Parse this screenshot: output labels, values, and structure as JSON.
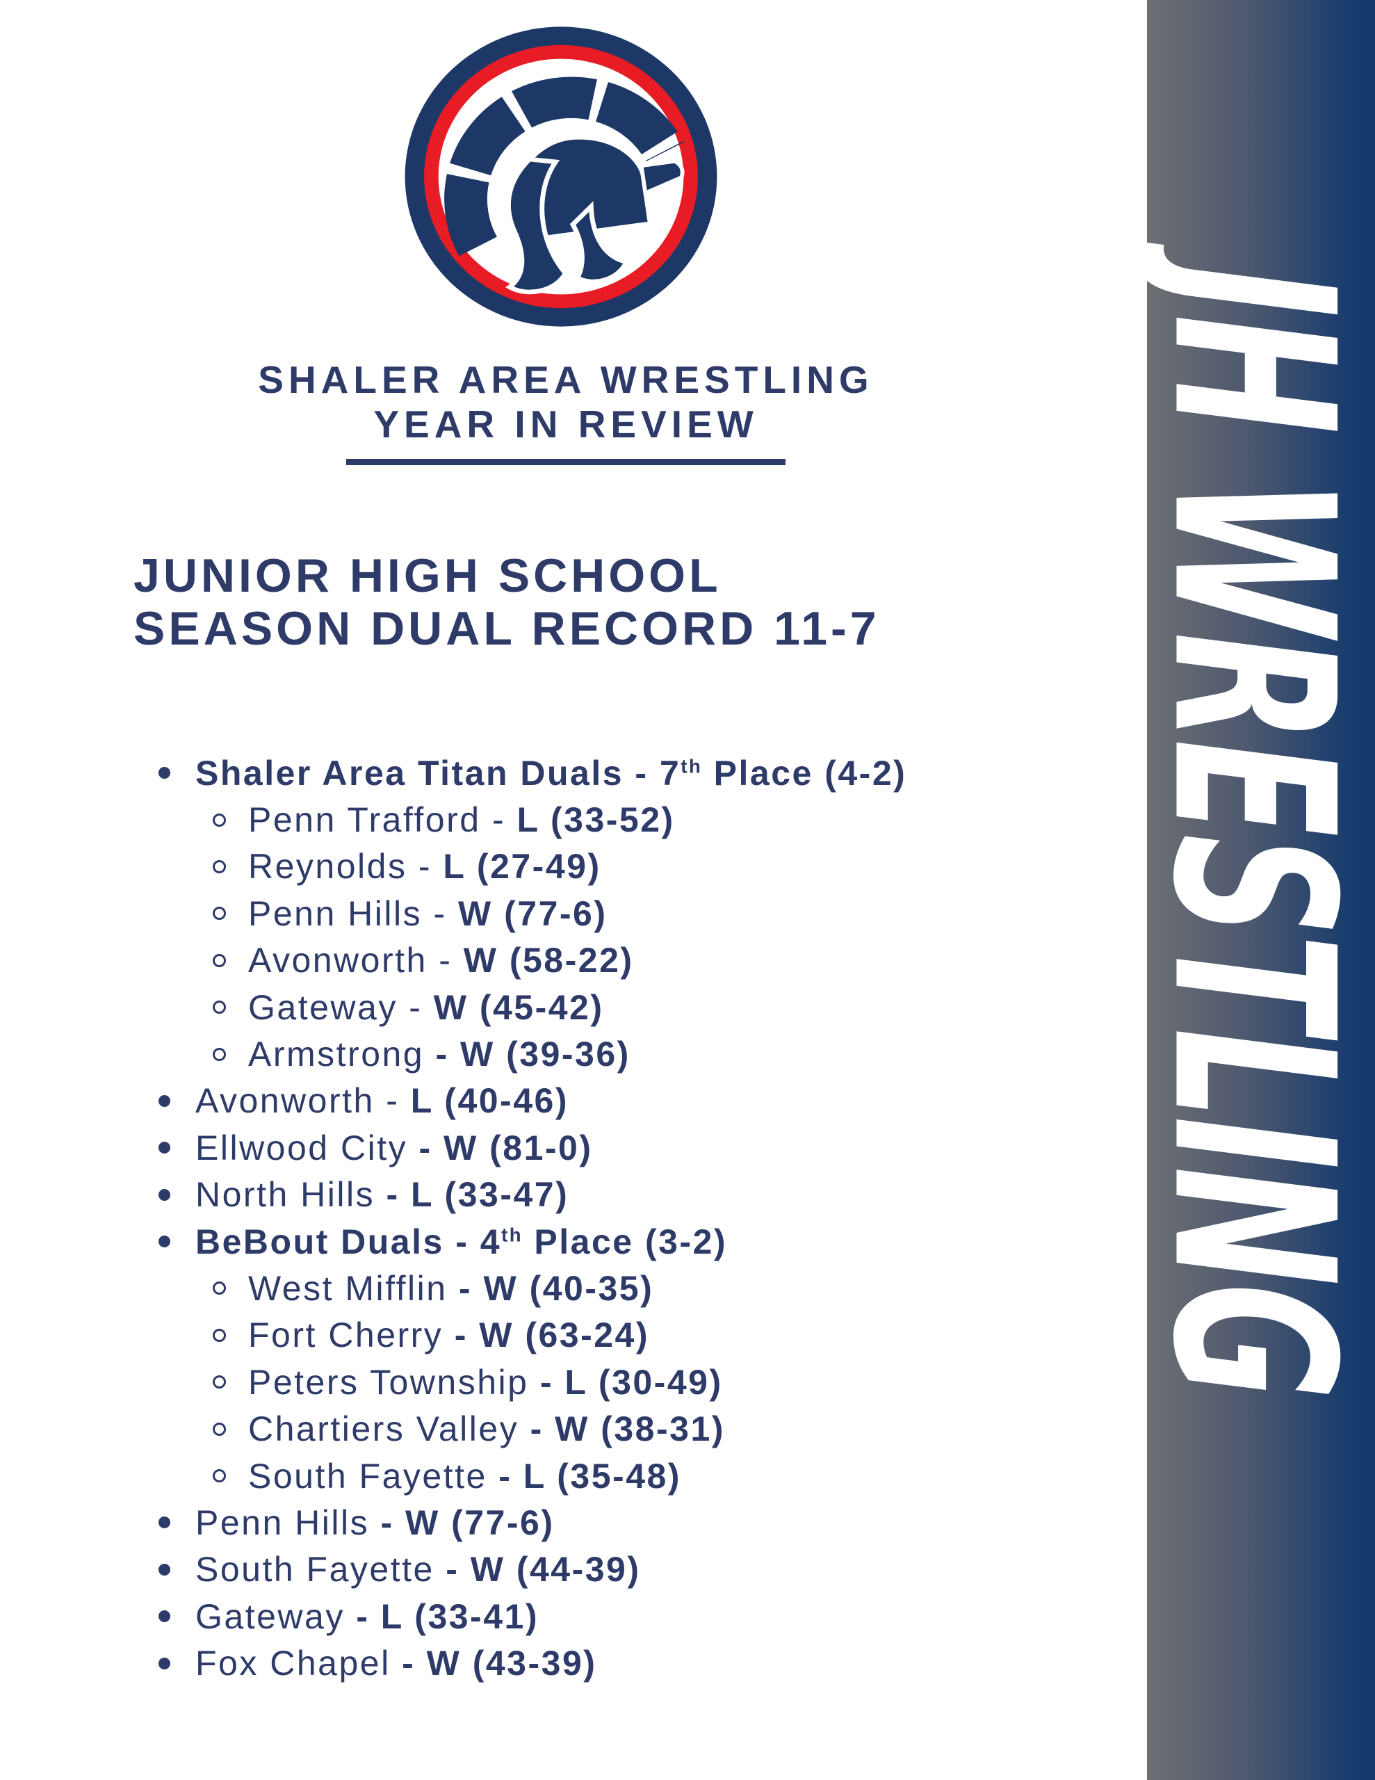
{
  "header": {
    "title": "SHALER AREA WRESTLING",
    "subtitle": "YEAR IN REVIEW"
  },
  "section": {
    "heading_line1": "JUNIOR HIGH SCHOOL",
    "heading_line2": "SEASON DUAL RECORD 11-7"
  },
  "record": {
    "items": [
      {
        "level": 0,
        "segments": [
          {
            "text": "Shaler Area Titan Duals - 7",
            "bold": true
          },
          {
            "text": "th",
            "bold": true,
            "sup": true
          },
          {
            "text": " Place (4-2)",
            "bold": true
          }
        ]
      },
      {
        "level": 1,
        "segments": [
          {
            "text": "Penn Trafford - ",
            "bold": false
          },
          {
            "text": "L (33-52)",
            "bold": true
          }
        ]
      },
      {
        "level": 1,
        "segments": [
          {
            "text": "Reynolds - ",
            "bold": false
          },
          {
            "text": "L (27-49)",
            "bold": true
          }
        ]
      },
      {
        "level": 1,
        "segments": [
          {
            "text": "Penn Hills - ",
            "bold": false
          },
          {
            "text": "W (77-6)",
            "bold": true
          }
        ]
      },
      {
        "level": 1,
        "segments": [
          {
            "text": "Avonworth - ",
            "bold": false
          },
          {
            "text": "W (58-22)",
            "bold": true
          }
        ]
      },
      {
        "level": 1,
        "segments": [
          {
            "text": "Gateway - ",
            "bold": false
          },
          {
            "text": "W (45-42)",
            "bold": true
          }
        ]
      },
      {
        "level": 1,
        "segments": [
          {
            "text": "Armstrong ",
            "bold": false
          },
          {
            "text": "- W (39-36)",
            "bold": true
          }
        ]
      },
      {
        "level": 0,
        "segments": [
          {
            "text": "Avonworth - ",
            "bold": false
          },
          {
            "text": "L (40-46)",
            "bold": true
          }
        ]
      },
      {
        "level": 0,
        "segments": [
          {
            "text": "Ellwood City ",
            "bold": false
          },
          {
            "text": "- W (81-0)",
            "bold": true
          }
        ]
      },
      {
        "level": 0,
        "segments": [
          {
            "text": "North Hills ",
            "bold": false
          },
          {
            "text": "- L (33-47)",
            "bold": true
          }
        ]
      },
      {
        "level": 0,
        "segments": [
          {
            "text": "BeBout Duals - 4",
            "bold": true
          },
          {
            "text": "th",
            "bold": true,
            "sup": true
          },
          {
            "text": " Place (3-2)",
            "bold": true
          }
        ]
      },
      {
        "level": 1,
        "segments": [
          {
            "text": "West Mifflin ",
            "bold": false
          },
          {
            "text": "- W (40-35)",
            "bold": true
          }
        ]
      },
      {
        "level": 1,
        "segments": [
          {
            "text": "Fort Cherry ",
            "bold": false
          },
          {
            "text": "- W (63-24)",
            "bold": true
          }
        ]
      },
      {
        "level": 1,
        "segments": [
          {
            "text": "Peters Township ",
            "bold": false
          },
          {
            "text": "- L (30-49)",
            "bold": true
          }
        ]
      },
      {
        "level": 1,
        "segments": [
          {
            "text": "Chartiers Valley ",
            "bold": false
          },
          {
            "text": "- W (38-31)",
            "bold": true
          }
        ]
      },
      {
        "level": 1,
        "segments": [
          {
            "text": "South Fayette ",
            "bold": false
          },
          {
            "text": "- L (35-48)",
            "bold": true
          }
        ]
      },
      {
        "level": 0,
        "segments": [
          {
            "text": "Penn Hills ",
            "bold": false
          },
          {
            "text": "- W (77-6)",
            "bold": true
          }
        ]
      },
      {
        "level": 0,
        "segments": [
          {
            "text": "South Fayette ",
            "bold": false
          },
          {
            "text": "- W (44-39)",
            "bold": true
          }
        ]
      },
      {
        "level": 0,
        "segments": [
          {
            "text": "Gateway ",
            "bold": false
          },
          {
            "text": "- L (33-41)",
            "bold": true
          }
        ]
      },
      {
        "level": 0,
        "segments": [
          {
            "text": "Fox Chapel ",
            "bold": false
          },
          {
            "text": "- W (43-39)",
            "bold": true
          }
        ]
      }
    ]
  },
  "sidebar": {
    "vertical_text": "JH WRESTLING"
  },
  "colors": {
    "navy_text": "#2e3a68",
    "logo_navy": "#1d3866",
    "logo_red": "#e81c24",
    "sidebar_gray": "#6d6f73",
    "sidebar_navy": "#143a6d"
  }
}
